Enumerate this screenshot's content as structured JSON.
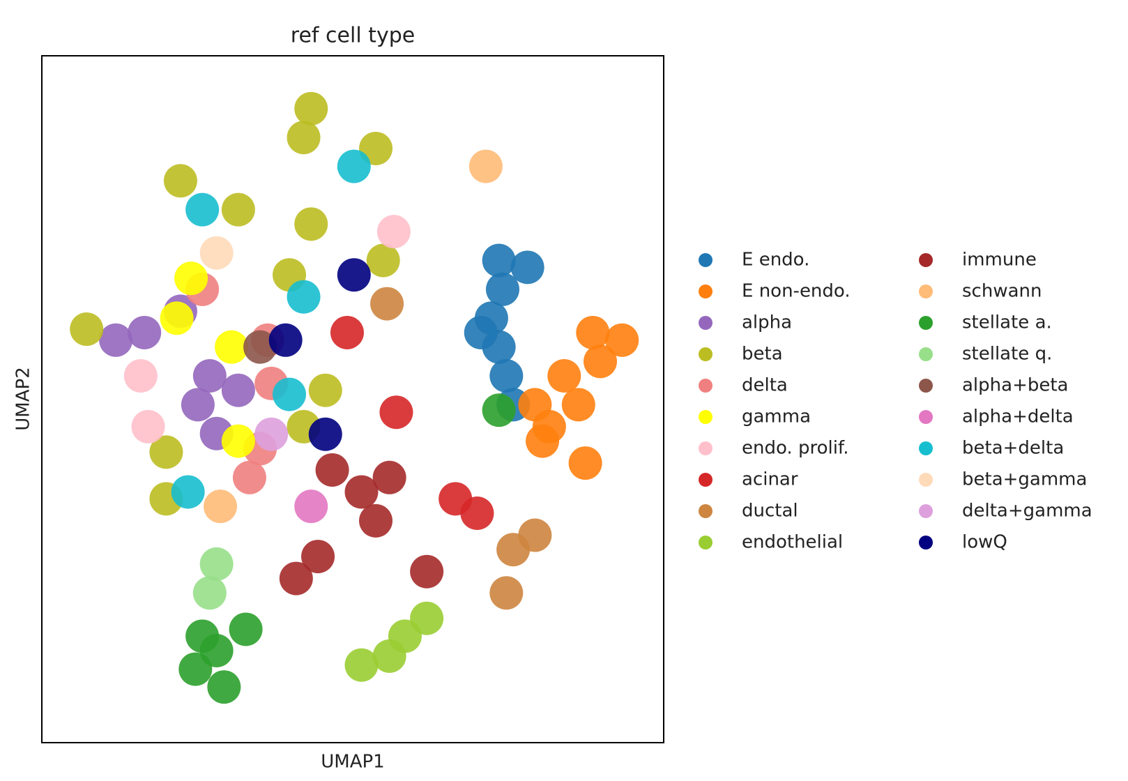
{
  "chart_data": {
    "type": "scatter",
    "title": "ref cell type",
    "x_label": "UMAP1",
    "y_label": "UMAP2",
    "xlim": [
      0,
      100
    ],
    "ylim": [
      0,
      100
    ],
    "legend": "outside right",
    "series": [
      {
        "name": "E endo.",
        "color": "#1f77b4",
        "x": [
          73.5,
          74.1,
          72.3,
          70.6,
          73.5,
          74.7,
          75.8,
          78.1
        ],
        "y": [
          70.2,
          66.0,
          61.8,
          59.7,
          57.6,
          53.4,
          49.2,
          69.2
        ]
      },
      {
        "name": "E non-endo.",
        "color": "#ff7f0e",
        "x": [
          81.6,
          86.3,
          89.8,
          93.3,
          79.3,
          84.0,
          88.6,
          80.5,
          87.4
        ],
        "y": [
          46.0,
          49.2,
          55.5,
          58.6,
          49.2,
          53.4,
          59.7,
          43.9,
          40.7
        ]
      },
      {
        "name": "alpha",
        "color": "#9467bd",
        "x": [
          16.5,
          22.3,
          27.0,
          28.1,
          25.1,
          11.9,
          31.6
        ],
        "y": [
          59.7,
          62.8,
          53.4,
          45.0,
          49.2,
          58.6,
          51.3
        ]
      },
      {
        "name": "beta",
        "color": "#bcbd22",
        "x": [
          43.3,
          42.1,
          53.7,
          22.3,
          31.6,
          43.3,
          54.9,
          7.2,
          45.6,
          42.1,
          20.0,
          20.0,
          39.8
        ],
        "y": [
          92.3,
          88.1,
          86.5,
          81.8,
          77.6,
          75.5,
          70.2,
          60.2,
          51.3,
          46.0,
          42.3,
          35.5,
          68.1
        ]
      },
      {
        "name": "delta",
        "color": "#f08080",
        "x": [
          36.3,
          35.1,
          25.8,
          36.9,
          33.4
        ],
        "y": [
          58.6,
          42.8,
          66.0,
          52.3,
          38.6
        ]
      },
      {
        "name": "gamma",
        "color": "#ffff00",
        "x": [
          30.5,
          21.7,
          31.6,
          24.0
        ],
        "y": [
          57.6,
          61.8,
          43.9,
          67.6
        ]
      },
      {
        "name": "endo. prolif.",
        "color": "#ffc0cb",
        "x": [
          15.9,
          17.1,
          56.6
        ],
        "y": [
          53.4,
          46.0,
          74.4
        ]
      },
      {
        "name": "acinar",
        "color": "#d62728",
        "x": [
          66.5,
          70.0,
          49.1,
          57.0
        ],
        "y": [
          35.5,
          33.4,
          59.7,
          48.1
        ]
      },
      {
        "name": "ductal",
        "color": "#cd853f",
        "x": [
          75.8,
          74.7,
          79.3,
          55.5
        ],
        "y": [
          28.1,
          21.8,
          30.2,
          63.9
        ]
      },
      {
        "name": "endothelial",
        "color": "#9acd32",
        "x": [
          51.4,
          55.9,
          58.4,
          61.9
        ],
        "y": [
          11.3,
          12.6,
          15.5,
          18.1
        ]
      },
      {
        "name": "immune",
        "color": "#a52a2a",
        "x": [
          51.4,
          55.9,
          44.4,
          53.7,
          40.9,
          61.9,
          46.7
        ],
        "y": [
          36.5,
          38.6,
          27.1,
          32.3,
          23.9,
          24.9,
          39.7
        ]
      },
      {
        "name": "schwann",
        "color": "#ffbb78",
        "x": [
          28.7,
          71.4
        ],
        "y": [
          34.4,
          83.9
        ]
      },
      {
        "name": "stellate a.",
        "color": "#2ca02c",
        "x": [
          28.1,
          29.3,
          25.8,
          32.8,
          73.5,
          24.7
        ],
        "y": [
          13.4,
          8.1,
          15.5,
          16.5,
          48.4,
          10.7
        ]
      },
      {
        "name": "stellate q.",
        "color": "#98df8a",
        "x": [
          28.1,
          27.0
        ],
        "y": [
          26.0,
          21.8
        ]
      },
      {
        "name": "alpha+beta",
        "color": "#8c564b",
        "x": [
          35.1
        ],
        "y": [
          57.6
        ]
      },
      {
        "name": "alpha+delta",
        "color": "#e377c2",
        "x": [
          43.3
        ],
        "y": [
          34.4
        ]
      },
      {
        "name": "beta+delta",
        "color": "#17becf",
        "x": [
          42.1,
          25.8,
          23.5,
          50.2,
          39.8
        ],
        "y": [
          64.9,
          77.6,
          36.5,
          83.9,
          50.7
        ]
      },
      {
        "name": "beta+gamma",
        "color": "#ffdab9",
        "x": [
          28.1
        ],
        "y": [
          71.3
        ]
      },
      {
        "name": "delta+gamma",
        "color": "#dda0dd",
        "x": [
          36.9
        ],
        "y": [
          44.9
        ]
      },
      {
        "name": "lowQ",
        "color": "#000080",
        "x": [
          45.6,
          50.2,
          39.2
        ],
        "y": [
          44.9,
          68.1,
          58.6
        ]
      }
    ]
  }
}
